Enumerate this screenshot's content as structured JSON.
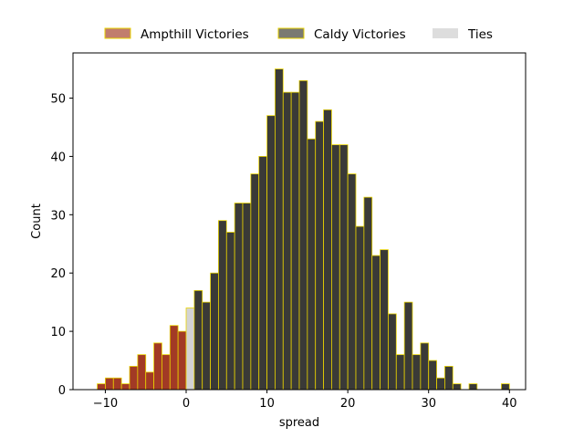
{
  "chart_data": {
    "type": "bar",
    "title": "",
    "xlabel": "spread",
    "ylabel": "Count",
    "xlim": [
      -14,
      42
    ],
    "ylim": [
      0,
      57.75
    ],
    "grid": false,
    "legend_placement": "top-center, above plot",
    "x_ticks": [
      -10,
      0,
      10,
      20,
      30,
      40
    ],
    "y_ticks": [
      0,
      10,
      20,
      30,
      40,
      50
    ],
    "x_tick_labels": [
      "−10",
      "0",
      "10",
      "20",
      "30",
      "40"
    ],
    "y_tick_labels": [
      "0",
      "10",
      "20",
      "30",
      "40",
      "50"
    ],
    "bin_width": 1,
    "edge_color": "#e8d300",
    "legend": [
      {
        "label": "Ampthill Victories",
        "color": "#c17d6d"
      },
      {
        "label": "Caldy Victories",
        "color": "#7a7a72"
      },
      {
        "label": "Ties",
        "color": "#dddddd"
      }
    ],
    "series": [
      {
        "name": "Ampthill Victories",
        "color": "#a23a25",
        "bins": [
          -11,
          -10,
          -9,
          -8,
          -7,
          -6,
          -5,
          -4,
          -3,
          -2,
          -1
        ],
        "values": [
          1,
          2,
          2,
          1,
          4,
          6,
          3,
          8,
          6,
          11,
          10
        ]
      },
      {
        "name": "Ties",
        "color": "#d3d3d3",
        "bins": [
          0
        ],
        "values": [
          14
        ]
      },
      {
        "name": "Caldy Victories",
        "color": "#3a3a37",
        "bins": [
          1,
          2,
          3,
          4,
          5,
          6,
          7,
          8,
          9,
          10,
          11,
          12,
          13,
          14,
          15,
          16,
          17,
          18,
          19,
          20,
          21,
          22,
          23,
          24,
          25,
          26,
          27,
          28,
          29,
          30,
          31,
          32,
          33,
          34,
          35,
          36,
          37,
          38,
          39
        ],
        "values": [
          17,
          15,
          20,
          29,
          27,
          32,
          32,
          37,
          40,
          47,
          55,
          51,
          51,
          53,
          43,
          46,
          48,
          42,
          42,
          37,
          28,
          33,
          23,
          24,
          13,
          6,
          15,
          6,
          8,
          5,
          2,
          4,
          1,
          0,
          1,
          0,
          0,
          0,
          1
        ]
      }
    ]
  }
}
